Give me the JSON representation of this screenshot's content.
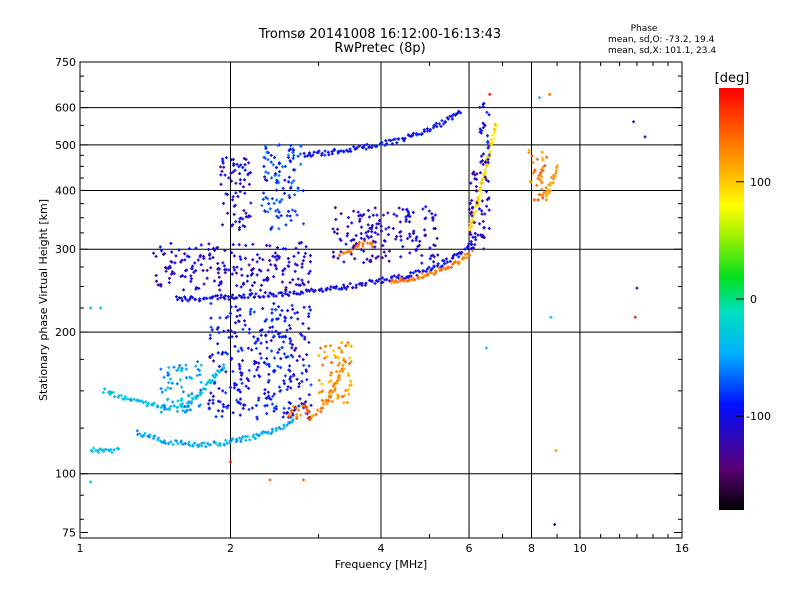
{
  "chart_data": {
    "type": "scatter",
    "title": "Tromsø 20141008 16:12:00-16:13:43",
    "subtitle": "RwPretec (8p)",
    "xlabel": "Frequency [MHz]",
    "ylabel": "Stationary phase Virtual Height [km]",
    "xscale": "log",
    "yscale": "log",
    "xlim": [
      1,
      16
    ],
    "ylim": [
      73,
      750
    ],
    "x_ticks": [
      1,
      2,
      4,
      6,
      8,
      10,
      16
    ],
    "y_ticks": [
      75,
      100,
      200,
      300,
      400,
      500,
      600,
      750
    ],
    "x_gridlines": [
      2,
      4,
      6,
      8,
      10
    ],
    "y_gridlines": [
      100,
      200,
      300,
      400,
      500,
      600
    ],
    "grid": true,
    "stats": {
      "heading": "Phase",
      "line_o": "mean, sd,O: -73.2, 19.4",
      "line_x": "mean, sd,X: 101.1, 23.4"
    },
    "colorbar": {
      "label": "[deg]",
      "ticks": [
        -100,
        0,
        100
      ],
      "range": [
        -180,
        180
      ],
      "colormap": "rainbow (black-purple-blue-cyan-green-yellow-orange-red)",
      "placement": "right"
    },
    "traces": [
      {
        "x": [
          1.12,
          1.3,
          1.5,
          1.65,
          1.75,
          1.85,
          1.95
        ],
        "y": [
          150,
          142,
          138,
          140,
          150,
          160,
          170
        ],
        "phase": -35
      },
      {
        "x": [
          1.3,
          1.5,
          1.7,
          1.9,
          2.1,
          2.3,
          2.5,
          2.7
        ],
        "y": [
          122,
          117,
          115,
          116,
          118,
          121,
          125,
          130
        ],
        "phase": -45
      },
      {
        "x": [
          1.55,
          1.8,
          2.1,
          2.4,
          2.8,
          3.3,
          3.8,
          4.4,
          5.0,
          5.5,
          5.9,
          6.2
        ],
        "y": [
          235,
          236,
          238,
          240,
          243,
          248,
          255,
          262,
          272,
          285,
          300,
          320
        ],
        "phase": -100
      },
      {
        "x": [
          6.0,
          6.2,
          6.4,
          6.55,
          6.7,
          6.8
        ],
        "y": [
          330,
          370,
          420,
          470,
          520,
          560
        ],
        "phase": 95
      },
      {
        "x": [
          2.8,
          3.2,
          3.7,
          4.3,
          4.8,
          5.3,
          5.8
        ],
        "y": [
          475,
          483,
          495,
          510,
          530,
          555,
          590
        ],
        "phase": -95
      },
      {
        "x": [
          4.2,
          4.6,
          5.0,
          5.4,
          5.8,
          6.1
        ],
        "y": [
          255,
          260,
          266,
          275,
          285,
          297
        ],
        "phase": 130
      },
      {
        "x": [
          3.3,
          3.5,
          3.7,
          3.9
        ],
        "y": [
          290,
          300,
          310,
          305
        ],
        "phase": 135
      },
      {
        "x": [
          2.9,
          3.1,
          3.3,
          3.4
        ],
        "y": [
          132,
          140,
          160,
          175
        ],
        "phase": 125
      },
      {
        "x": [
          1.05,
          1.2
        ],
        "y": [
          112,
          112
        ],
        "phase": -40
      },
      {
        "x": [
          8.6,
          8.8,
          9.0
        ],
        "y": [
          390,
          420,
          450
        ],
        "phase": 115
      }
    ],
    "clusters": [
      {
        "x": [
          1.4,
          2.9
        ],
        "y": [
          245,
          310
        ],
        "phase": -110
      },
      {
        "x": [
          1.8,
          2.9
        ],
        "y": [
          130,
          230
        ],
        "phase": -95
      },
      {
        "x": [
          2.3,
          2.8
        ],
        "y": [
          330,
          500
        ],
        "phase": -80
      },
      {
        "x": [
          1.9,
          2.2
        ],
        "y": [
          330,
          470
        ],
        "phase": -105
      },
      {
        "x": [
          3.0,
          3.5
        ],
        "y": [
          140,
          190
        ],
        "phase": 120
      },
      {
        "x": [
          2.6,
          2.9
        ],
        "y": [
          130,
          140
        ],
        "phase": 140
      },
      {
        "x": [
          6.0,
          6.6
        ],
        "y": [
          300,
          450
        ],
        "phase": -115
      },
      {
        "x": [
          6.3,
          6.6
        ],
        "y": [
          450,
          620
        ],
        "phase": -95
      },
      {
        "x": [
          3.2,
          5.2
        ],
        "y": [
          280,
          370
        ],
        "phase": -110
      },
      {
        "x": [
          7.9,
          8.6
        ],
        "y": [
          380,
          500
        ],
        "phase": 130
      },
      {
        "x": [
          1.45,
          1.75
        ],
        "y": [
          135,
          175
        ],
        "phase": -45
      }
    ],
    "isolated": [
      {
        "x": 8.95,
        "y": 112,
        "phase": 120
      },
      {
        "x": 8.9,
        "y": 78,
        "phase": -130
      },
      {
        "x": 8.75,
        "y": 215,
        "phase": -40
      },
      {
        "x": 6.5,
        "y": 185,
        "phase": -35
      },
      {
        "x": 13.0,
        "y": 248,
        "phase": -130
      },
      {
        "x": 12.9,
        "y": 215,
        "phase": 170
      },
      {
        "x": 13.5,
        "y": 520,
        "phase": -110
      },
      {
        "x": 12.8,
        "y": 560,
        "phase": -100
      },
      {
        "x": 1.05,
        "y": 96,
        "phase": -40
      },
      {
        "x": 2.4,
        "y": 97,
        "phase": 140
      },
      {
        "x": 2.8,
        "y": 97,
        "phase": 140
      },
      {
        "x": 2.0,
        "y": 106,
        "phase": 170
      },
      {
        "x": 1.05,
        "y": 225,
        "phase": -40
      },
      {
        "x": 1.1,
        "y": 225,
        "phase": -40
      },
      {
        "x": 6.6,
        "y": 640,
        "phase": 170
      },
      {
        "x": 8.3,
        "y": 630,
        "phase": -40
      },
      {
        "x": 8.7,
        "y": 640,
        "phase": 140
      }
    ]
  }
}
